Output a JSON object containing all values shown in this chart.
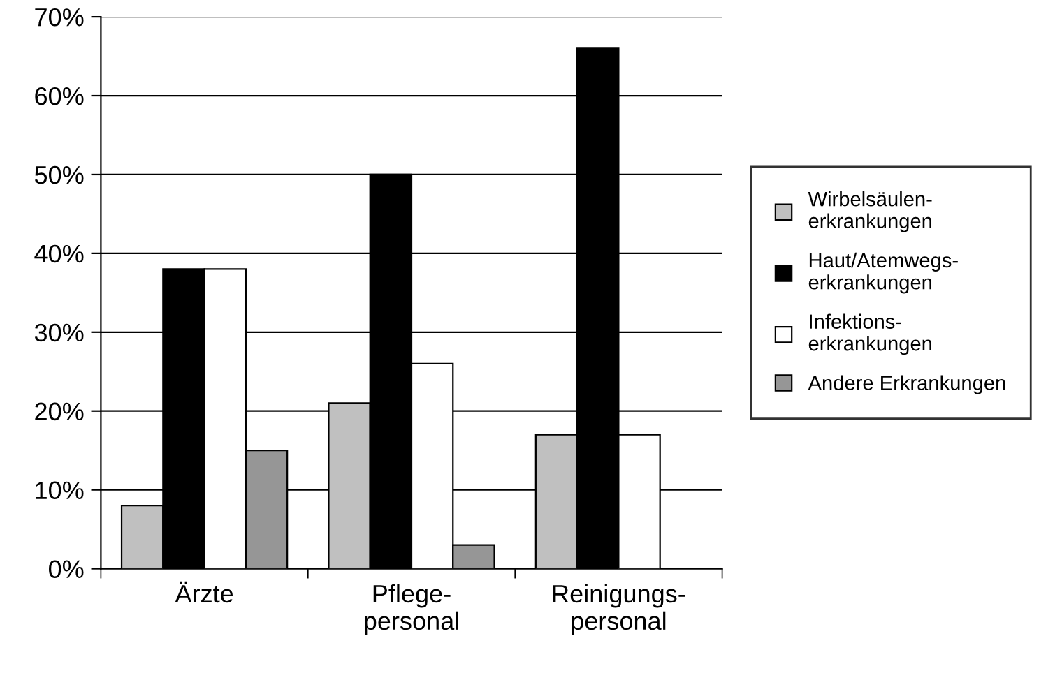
{
  "chart_data": {
    "type": "bar",
    "categories": [
      "Ärzte",
      "Pflege-\npersonal",
      "Reinigungs-\npersonal"
    ],
    "series": [
      {
        "name": "Wirbelsäulen-\nerkrankungen",
        "color": "#c0c0c0",
        "values": [
          8,
          21,
          17
        ]
      },
      {
        "name": "Haut/Atemwegs-\nerkrankungen",
        "color": "#000000",
        "values": [
          38,
          50,
          66
        ]
      },
      {
        "name": "Infektions-\nerkrankungen",
        "color": "#ffffff",
        "values": [
          38,
          26,
          17
        ]
      },
      {
        "name": "Andere Erkrankungen",
        "color": "#969696",
        "values": [
          15,
          3,
          null
        ]
      }
    ],
    "ylim": [
      0,
      70
    ],
    "yticks": [
      {
        "value": 0,
        "label": "0%"
      },
      {
        "value": 10,
        "label": "10%"
      },
      {
        "value": 20,
        "label": "20%"
      },
      {
        "value": 30,
        "label": "30%"
      },
      {
        "value": 40,
        "label": "40%"
      },
      {
        "value": 50,
        "label": "50%"
      },
      {
        "value": 60,
        "label": "60%"
      },
      {
        "value": 70,
        "label": "70%"
      }
    ],
    "grid": "y",
    "legend": "right"
  }
}
